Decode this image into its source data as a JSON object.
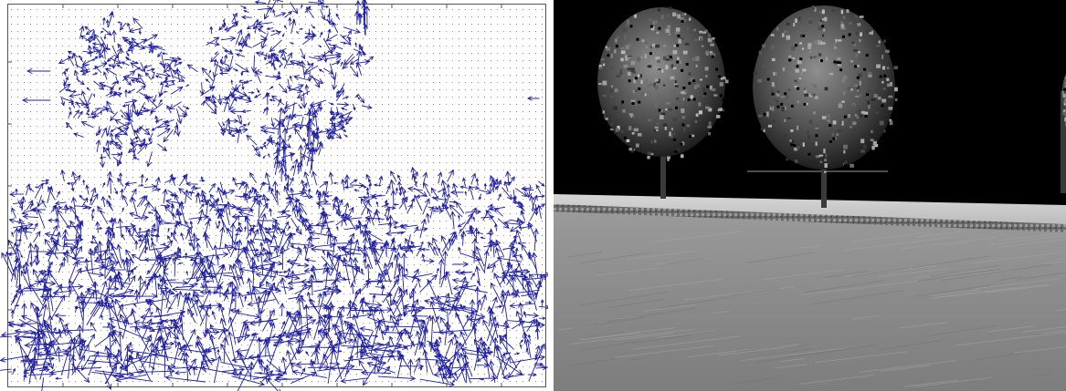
{
  "figure": {
    "left_panel": {
      "kind": "optical-flow quiver plot",
      "arrow_color": "#1f1fa0",
      "grid_dot_color": "#9a9a9a",
      "frame_color": "#555555"
    },
    "right_panel": {
      "kind": "synthetic road scene, grayscale",
      "sky_color": "#000000",
      "sidewalk_color": "#c8c8c8",
      "road_color": "#8c8c8c",
      "trees": 3
    }
  }
}
